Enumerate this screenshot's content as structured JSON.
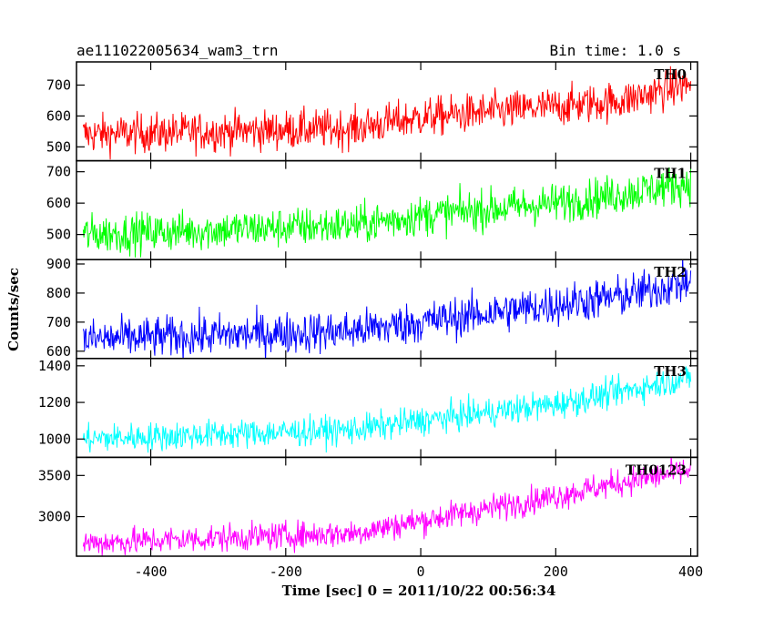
{
  "header": {
    "left_title": "ae111022005634_wam3_trn",
    "right_title": "Bin time: 1.0 s"
  },
  "chart_data": {
    "type": "line",
    "xlabel": "Time [sec] 0 = 2011/10/22 00:56:34",
    "ylabel": "Counts/sec",
    "xlim": [
      -510,
      410
    ],
    "x_ticks": [
      -400,
      -200,
      0,
      200,
      400
    ],
    "x_range": [
      -500,
      400
    ],
    "panels": [
      {
        "name": "TH0",
        "color": "#ff0000",
        "ylim": [
          455,
          775
        ],
        "y_ticks": [
          500,
          600,
          700
        ],
        "trend": [
          [
            -500,
            540
          ],
          [
            -100,
            560
          ],
          [
            0,
            595
          ],
          [
            200,
            630
          ],
          [
            300,
            650
          ],
          [
            400,
            705
          ]
        ],
        "noise": 32
      },
      {
        "name": "TH1",
        "color": "#00ff00",
        "ylim": [
          420,
          735
        ],
        "y_ticks": [
          500,
          600,
          700
        ],
        "trend": [
          [
            -500,
            500
          ],
          [
            -100,
            530
          ],
          [
            0,
            560
          ],
          [
            200,
            600
          ],
          [
            300,
            630
          ],
          [
            400,
            665
          ]
        ],
        "noise": 32
      },
      {
        "name": "TH2",
        "color": "#0000ff",
        "ylim": [
          575,
          915
        ],
        "y_ticks": [
          600,
          700,
          800,
          900
        ],
        "trend": [
          [
            -500,
            640
          ],
          [
            -100,
            670
          ],
          [
            0,
            700
          ],
          [
            200,
            760
          ],
          [
            300,
            790
          ],
          [
            400,
            840
          ]
        ],
        "noise": 36
      },
      {
        "name": "TH3",
        "color": "#00ffff",
        "ylim": [
          900,
          1440
        ],
        "y_ticks": [
          1000,
          1200,
          1400
        ],
        "trend": [
          [
            -500,
            1000
          ],
          [
            -100,
            1050
          ],
          [
            0,
            1100
          ],
          [
            200,
            1190
          ],
          [
            300,
            1260
          ],
          [
            400,
            1340
          ]
        ],
        "noise": 40
      },
      {
        "name": "TH0123",
        "color": "#ff00ff",
        "ylim": [
          2520,
          3720
        ],
        "y_ticks": [
          3000,
          3500
        ],
        "trend": [
          [
            -500,
            2680
          ],
          [
            -100,
            2800
          ],
          [
            0,
            2950
          ],
          [
            200,
            3250
          ],
          [
            300,
            3420
          ],
          [
            400,
            3560
          ]
        ],
        "noise": 85
      }
    ]
  }
}
